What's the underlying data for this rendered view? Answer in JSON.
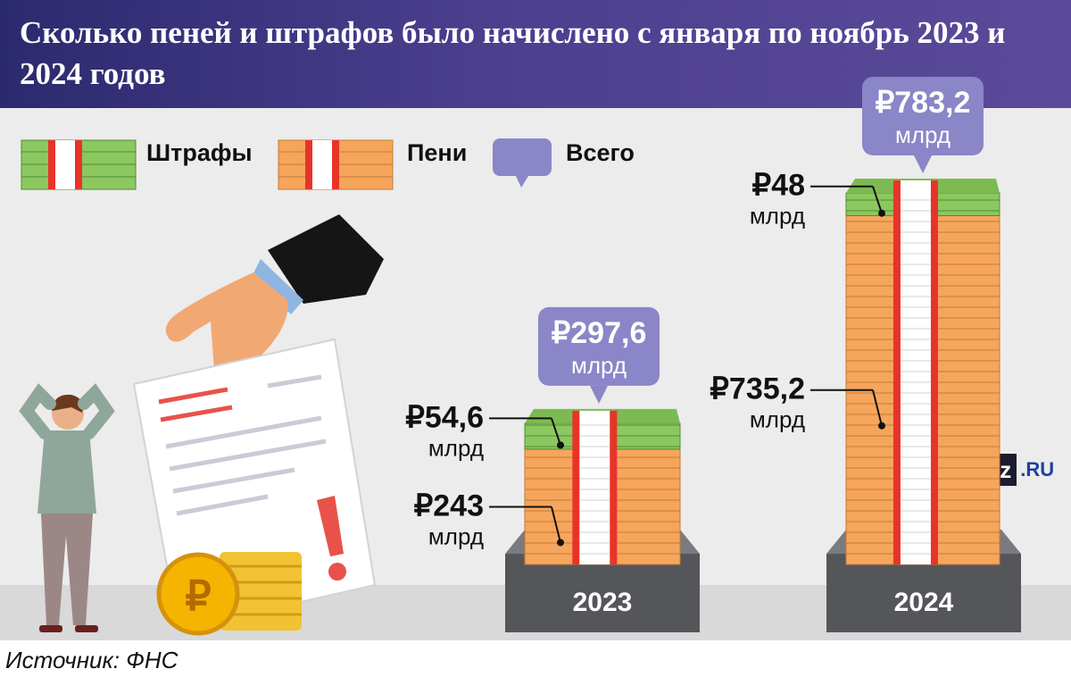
{
  "title": "Сколько пеней и штрафов было начислено с января по ноябрь 2023 и 2024 годов",
  "legend": [
    {
      "label": "Штрафы",
      "color": "#8cc860"
    },
    {
      "label": "Пени",
      "color": "#f6a65c"
    },
    {
      "label": "Всего",
      "color": "#8a86c8"
    }
  ],
  "source": "Источник: ФНС",
  "brand": {
    "iz": "iz",
    "ru": ".RU"
  },
  "colors": {
    "fines": "#8cc860",
    "penalties": "#f6a65c",
    "total": "#8a86c8",
    "band": "#e8332a",
    "pedestal": "#55565a"
  },
  "chart_data": {
    "type": "bar",
    "stacked": true,
    "categories": [
      "2023",
      "2024"
    ],
    "series": [
      {
        "name": "Пени",
        "values": [
          243,
          735.2
        ]
      },
      {
        "name": "Штрафы",
        "values": [
          54.6,
          48
        ]
      }
    ],
    "totals": [
      297.6,
      783.2
    ],
    "value_labels": {
      "penalties": [
        "₽243",
        "₽735,2"
      ],
      "fines": [
        "₽54,6",
        "₽48"
      ],
      "totals": [
        "₽297,6",
        "₽783,2"
      ],
      "unit": "млрд"
    },
    "ylim": [
      0,
      800
    ]
  }
}
